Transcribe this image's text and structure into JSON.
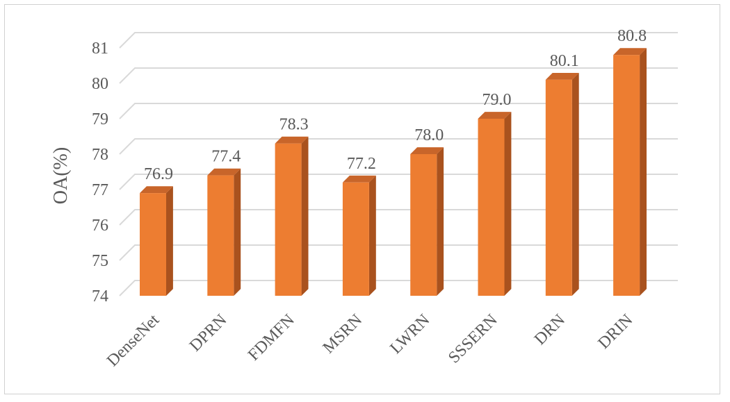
{
  "chart_data": {
    "type": "bar",
    "style": "3d-column",
    "categories": [
      "DenseNet",
      "DPRN",
      "FDMFN",
      "MSRN",
      "LWRN",
      "SSSERN",
      "DRN",
      "DRIN"
    ],
    "values": [
      76.9,
      77.4,
      78.3,
      77.2,
      78.0,
      79.0,
      80.1,
      80.8
    ],
    "value_labels": [
      "76.9",
      "77.4",
      "78.3",
      "77.2",
      "78.0",
      "79.0",
      "80.1",
      "80.8"
    ],
    "title": "",
    "xlabel": "",
    "ylabel": "OA(%)",
    "ylim": [
      74,
      81
    ],
    "yticks": [
      "74",
      "75",
      "76",
      "77",
      "78",
      "79",
      "80",
      "81"
    ],
    "grid": true,
    "legend": "none"
  },
  "colors": {
    "bar_front": "#ED7D31",
    "bar_side": "#A9521E",
    "bar_top": "#C8652A",
    "gridline": "#D9D9D9",
    "text": "#595959"
  }
}
